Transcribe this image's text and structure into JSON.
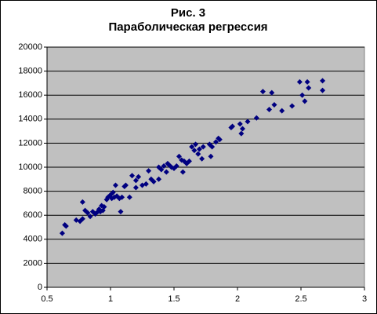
{
  "chart_data": {
    "type": "scatter",
    "title": "Рис. 3",
    "subtitle": "Параболическая регрессия",
    "x": [
      0.62,
      0.64,
      0.65,
      0.73,
      0.76,
      0.78,
      0.78,
      0.8,
      0.82,
      0.84,
      0.86,
      0.88,
      0.9,
      0.91,
      0.92,
      0.93,
      0.94,
      0.95,
      0.97,
      0.98,
      1.0,
      1.01,
      1.02,
      1.03,
      1.04,
      1.05,
      1.07,
      1.08,
      1.09,
      1.11,
      1.12,
      1.15,
      1.17,
      1.2,
      1.2,
      1.22,
      1.25,
      1.28,
      1.3,
      1.32,
      1.34,
      1.38,
      1.38,
      1.4,
      1.42,
      1.44,
      1.45,
      1.46,
      1.48,
      1.5,
      1.52,
      1.54,
      1.56,
      1.57,
      1.58,
      1.6,
      1.62,
      1.64,
      1.66,
      1.67,
      1.69,
      1.7,
      1.72,
      1.73,
      1.78,
      1.79,
      1.8,
      1.83,
      1.85,
      1.86,
      1.95,
      1.96,
      2.02,
      2.03,
      2.04,
      2.08,
      2.15,
      2.2,
      2.25,
      2.27,
      2.29,
      2.35,
      2.43,
      2.49,
      2.51,
      2.53,
      2.55,
      2.56,
      2.67,
      2.67
    ],
    "values": [
      4500,
      5200,
      5100,
      5600,
      5500,
      5700,
      7100,
      6400,
      6200,
      5900,
      6300,
      6100,
      6300,
      6500,
      6300,
      6800,
      6400,
      6700,
      7300,
      7500,
      7700,
      7400,
      7900,
      7500,
      8500,
      7600,
      7400,
      6300,
      7500,
      8400,
      8500,
      7500,
      9300,
      8300,
      8900,
      9200,
      8500,
      8600,
      9700,
      9000,
      8800,
      9000,
      10000,
      9800,
      10100,
      9600,
      10300,
      10200,
      10000,
      9900,
      10100,
      10900,
      10600,
      9600,
      10500,
      10300,
      10500,
      11700,
      11400,
      11900,
      11100,
      11500,
      10700,
      11700,
      11900,
      10900,
      11700,
      12100,
      12400,
      12300,
      13300,
      13400,
      13600,
      12800,
      13200,
      13800,
      14100,
      16300,
      14800,
      16200,
      15200,
      14700,
      15100,
      17100,
      16000,
      15500,
      17100,
      16600,
      17200,
      16400
    ],
    "color": "#000080",
    "plot_background": "#c0c0c0",
    "grid": true,
    "xlim": [
      0.5,
      3
    ],
    "xticks": [
      0.5,
      1,
      1.5,
      2,
      2.5,
      3
    ],
    "ylim": [
      0,
      20000
    ],
    "yticks": [
      0,
      2000,
      4000,
      6000,
      8000,
      10000,
      12000,
      14000,
      16000,
      18000,
      20000
    ]
  }
}
